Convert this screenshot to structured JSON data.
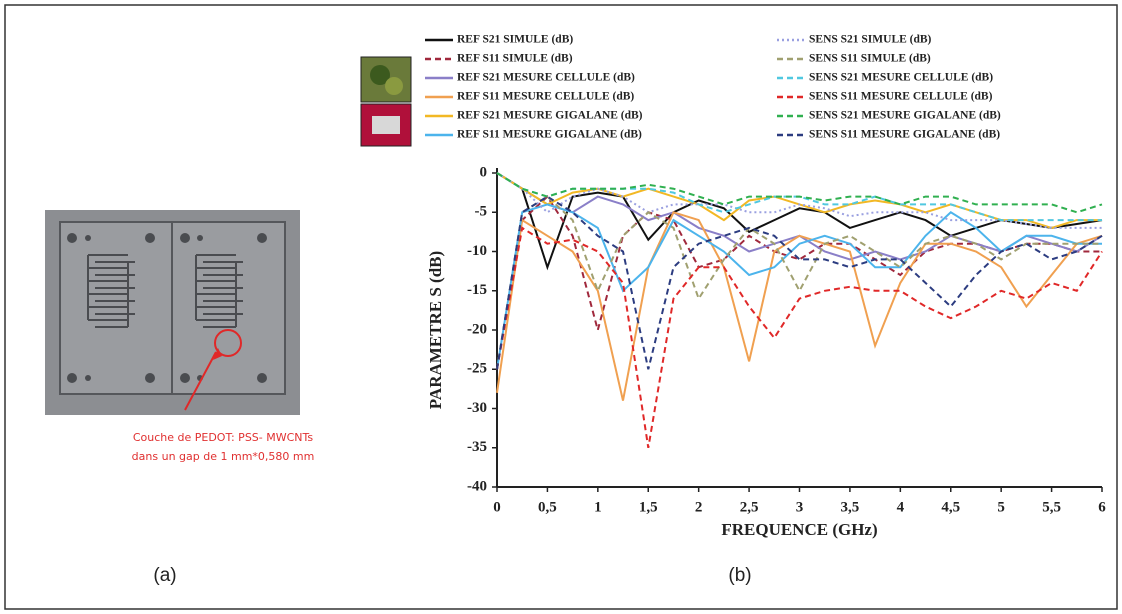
{
  "chart_data": {
    "type": "line",
    "x_label": "FREQUENCE (GHz)",
    "y_label": "PARAMETRE S (dB)",
    "x": [
      0,
      0.25,
      0.5,
      0.75,
      1,
      1.25,
      1.5,
      1.75,
      2,
      2.25,
      2.5,
      2.75,
      3,
      3.25,
      3.5,
      3.75,
      4,
      4.25,
      4.5,
      4.75,
      5,
      5.25,
      5.5,
      5.75,
      6
    ],
    "xlim": [
      0,
      6
    ],
    "xticks": [
      0,
      {
        "value": 0.5,
        "label": "0,5"
      },
      1,
      {
        "value": 1.5,
        "label": "1,5"
      },
      2,
      {
        "value": 2.5,
        "label": "2,5"
      },
      3,
      {
        "value": 3.5,
        "label": "3,5"
      },
      4,
      {
        "value": 4.5,
        "label": "4,5"
      },
      5,
      {
        "value": 5.5,
        "label": "5,5"
      },
      6
    ],
    "ylim": [
      -40,
      0
    ],
    "yticks": [
      0,
      -5,
      -10,
      -15,
      -20,
      -25,
      -30,
      -35,
      -40
    ],
    "series": [
      {
        "name": "REF S21 SIMULE (dB)",
        "color": "#111111",
        "dash": "solid",
        "values": [
          0,
          -2,
          -12,
          -3,
          -2.5,
          -3,
          -8.5,
          -5,
          -3.5,
          -4.5,
          -7.5,
          -6,
          -4.5,
          -5,
          -7,
          -6,
          -5,
          -6,
          -8,
          -7,
          -6,
          -6.5,
          -7,
          -6.5,
          -6
        ]
      },
      {
        "name": "REF S11 SIMULE (dB)",
        "color": "#a0283c",
        "dash": "dashed",
        "values": [
          -25,
          -6,
          -3,
          -8,
          -20,
          -8,
          -5,
          -6,
          -12,
          -11,
          -8,
          -10,
          -11,
          -9,
          -9,
          -11,
          -13,
          -10,
          -9,
          -9,
          -10,
          -9,
          -9,
          -10,
          -10
        ]
      },
      {
        "name": "REF S21 MESURE CELLULE (dB)",
        "color": "#8a7fc8",
        "dash": "solid",
        "values": [
          0,
          -2,
          -4,
          -5,
          -3,
          -4,
          -6,
          -5,
          -7,
          -8,
          -10,
          -9,
          -8,
          -10,
          -11,
          -10,
          -11,
          -10,
          -8,
          -9,
          -10,
          -8,
          -9,
          -10,
          -8
        ]
      },
      {
        "name": "REF S11 MESURE CELLULE (dB)",
        "color": "#f0a050",
        "dash": "solid",
        "values": [
          -28,
          -6,
          -8,
          -10,
          -15,
          -29,
          -12,
          -5,
          -6,
          -12,
          -24,
          -10,
          -8,
          -9,
          -10,
          -22,
          -14,
          -9,
          -9,
          -10,
          -12,
          -17,
          -13,
          -9,
          -8
        ]
      },
      {
        "name": "REF S21 MESURE GIGALANE (dB)",
        "color": "#f2b824",
        "dash": "solid",
        "values": [
          0,
          -2,
          -4,
          -2.5,
          -2,
          -3,
          -2,
          -3,
          -4,
          -6,
          -3.5,
          -3,
          -4,
          -5,
          -4,
          -3.5,
          -4,
          -5,
          -4,
          -5,
          -6,
          -6,
          -7,
          -6,
          -6
        ]
      },
      {
        "name": "REF S11 MESURE GIGALANE (dB)",
        "color": "#4cb4ec",
        "dash": "solid",
        "values": [
          -25,
          -5,
          -4,
          -5,
          -7,
          -15,
          -12,
          -6,
          -8,
          -10,
          -13,
          -12,
          -9,
          -8,
          -9,
          -12,
          -12,
          -8,
          -5,
          -7,
          -10,
          -8,
          -8,
          -9,
          -9
        ]
      },
      {
        "name": "SENS S21 SIMULE (dB)",
        "color": "#9aa0e0",
        "dash": "dotted",
        "values": [
          0,
          -2,
          -5,
          -3,
          -2,
          -3,
          -5,
          -4,
          -4,
          -4,
          -5,
          -5,
          -4,
          -4.5,
          -5.5,
          -5,
          -5,
          -5,
          -6,
          -6,
          -6,
          -6.5,
          -7,
          -7,
          -7
        ]
      },
      {
        "name": "SENS S11 SIMULE (dB)",
        "color": "#a0a070",
        "dash": "dashed",
        "values": [
          -25,
          -5,
          -3,
          -6,
          -15,
          -8,
          -5,
          -7,
          -16,
          -11,
          -7,
          -9,
          -15,
          -9,
          -8,
          -10,
          -12,
          -9,
          -8,
          -9,
          -11,
          -9,
          -9,
          -9,
          -9
        ]
      },
      {
        "name": "SENS S21 MESURE CELLULE (dB)",
        "color": "#50c8e0",
        "dash": "dashed",
        "values": [
          0,
          -2,
          -3,
          -2,
          -2,
          -2,
          -2,
          -2.5,
          -4,
          -5,
          -4,
          -3,
          -3,
          -4,
          -4,
          -3,
          -4,
          -4,
          -4,
          -5,
          -6,
          -6,
          -6,
          -6,
          -6
        ]
      },
      {
        "name": "SENS S11 MESURE CELLULE (dB)",
        "color": "#e02828",
        "dash": "dashed",
        "values": [
          -25,
          -7,
          -9,
          -8.5,
          -10,
          -14,
          -35,
          -16,
          -12,
          -12,
          -17,
          -21,
          -16,
          -15,
          -14.5,
          -15,
          -15,
          -17,
          -18.5,
          -17,
          -15,
          -16,
          -14,
          -15,
          -10
        ]
      },
      {
        "name": "SENS S21 MESURE GIGALANE (dB)",
        "color": "#30b050",
        "dash": "dashed",
        "values": [
          0,
          -2,
          -3,
          -2,
          -2,
          -2,
          -1.5,
          -2,
          -3,
          -4,
          -3,
          -3,
          -3,
          -3.5,
          -3,
          -3,
          -4,
          -3,
          -3,
          -4,
          -4,
          -4,
          -4,
          -5,
          -4
        ]
      },
      {
        "name": "SENS S11 MESURE GIGALANE (dB)",
        "color": "#2c3c80",
        "dash": "dashed",
        "values": [
          -25,
          -5,
          -3,
          -5,
          -8,
          -10,
          -25,
          -12,
          -9,
          -8,
          -7,
          -8,
          -11,
          -11,
          -12,
          -11,
          -11,
          -14,
          -17,
          -13,
          -10,
          -9,
          -11,
          -10,
          -8
        ]
      }
    ]
  },
  "photo_caption": [
    "Couche  de PEDOT: PSS- MWCNTs",
    "dans un gap de  1 mm*0,580 mm"
  ],
  "panel_labels": [
    "(a)",
    "(b)"
  ]
}
